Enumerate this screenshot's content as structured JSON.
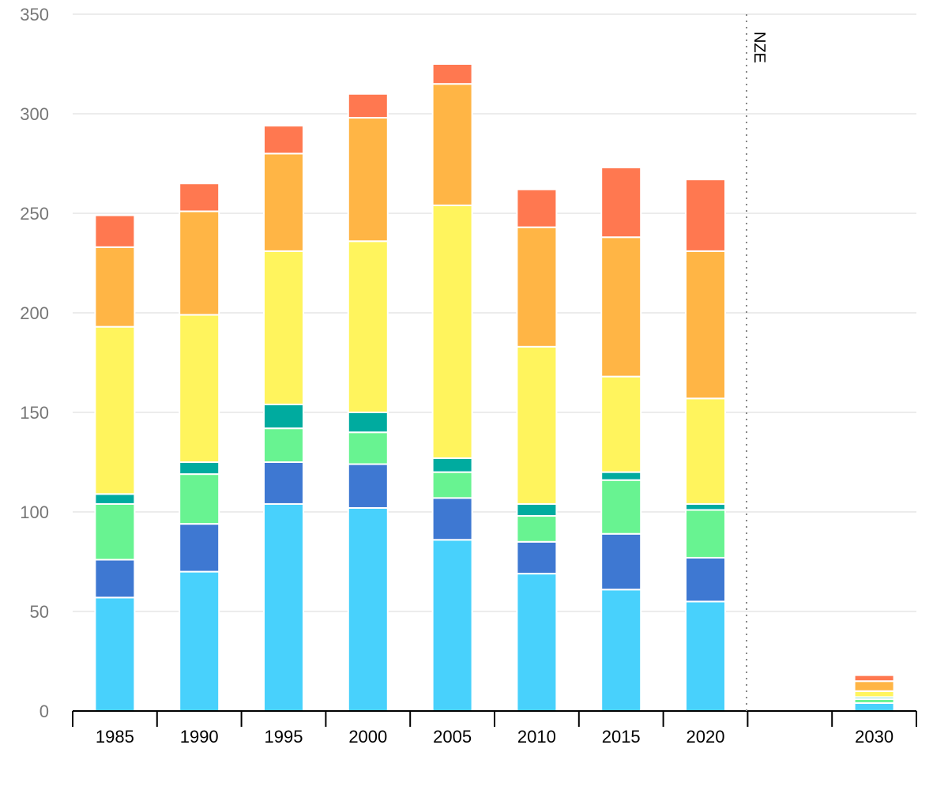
{
  "chart_data": {
    "type": "bar",
    "stacked": true,
    "title": "",
    "xlabel": "",
    "ylabel": "",
    "ylim": [
      0,
      350
    ],
    "yticks": [
      0,
      50,
      100,
      150,
      200,
      250,
      300,
      350
    ],
    "grid": true,
    "legend": "none",
    "categories": [
      "1985",
      "1990",
      "1995",
      "2000",
      "2005",
      "2010",
      "2015",
      "2020",
      "",
      "2030"
    ],
    "annotation": {
      "text": "NZE",
      "position": "between 2020 and 2030"
    },
    "series": [
      {
        "color": "#48d1fc",
        "values": [
          57,
          70,
          104,
          102,
          86,
          69,
          61,
          55,
          null,
          4
        ]
      },
      {
        "color": "#3e78d2",
        "values": [
          19,
          24,
          21,
          22,
          21,
          16,
          28,
          22,
          null,
          0
        ]
      },
      {
        "color": "#68f391",
        "values": [
          28,
          25,
          17,
          16,
          13,
          13,
          27,
          24,
          null,
          2
        ]
      },
      {
        "color": "#00ab9f",
        "values": [
          5,
          6,
          12,
          10,
          7,
          6,
          4,
          3,
          null,
          1
        ]
      },
      {
        "color": "#fff45d",
        "values": [
          84,
          74,
          77,
          86,
          127,
          79,
          48,
          53,
          null,
          3
        ]
      },
      {
        "color": "#ffb545",
        "values": [
          40,
          52,
          49,
          62,
          61,
          60,
          70,
          74,
          null,
          5
        ]
      },
      {
        "color": "#ff7850",
        "values": [
          16,
          14,
          14,
          12,
          10,
          19,
          35,
          36,
          null,
          3
        ]
      }
    ]
  }
}
